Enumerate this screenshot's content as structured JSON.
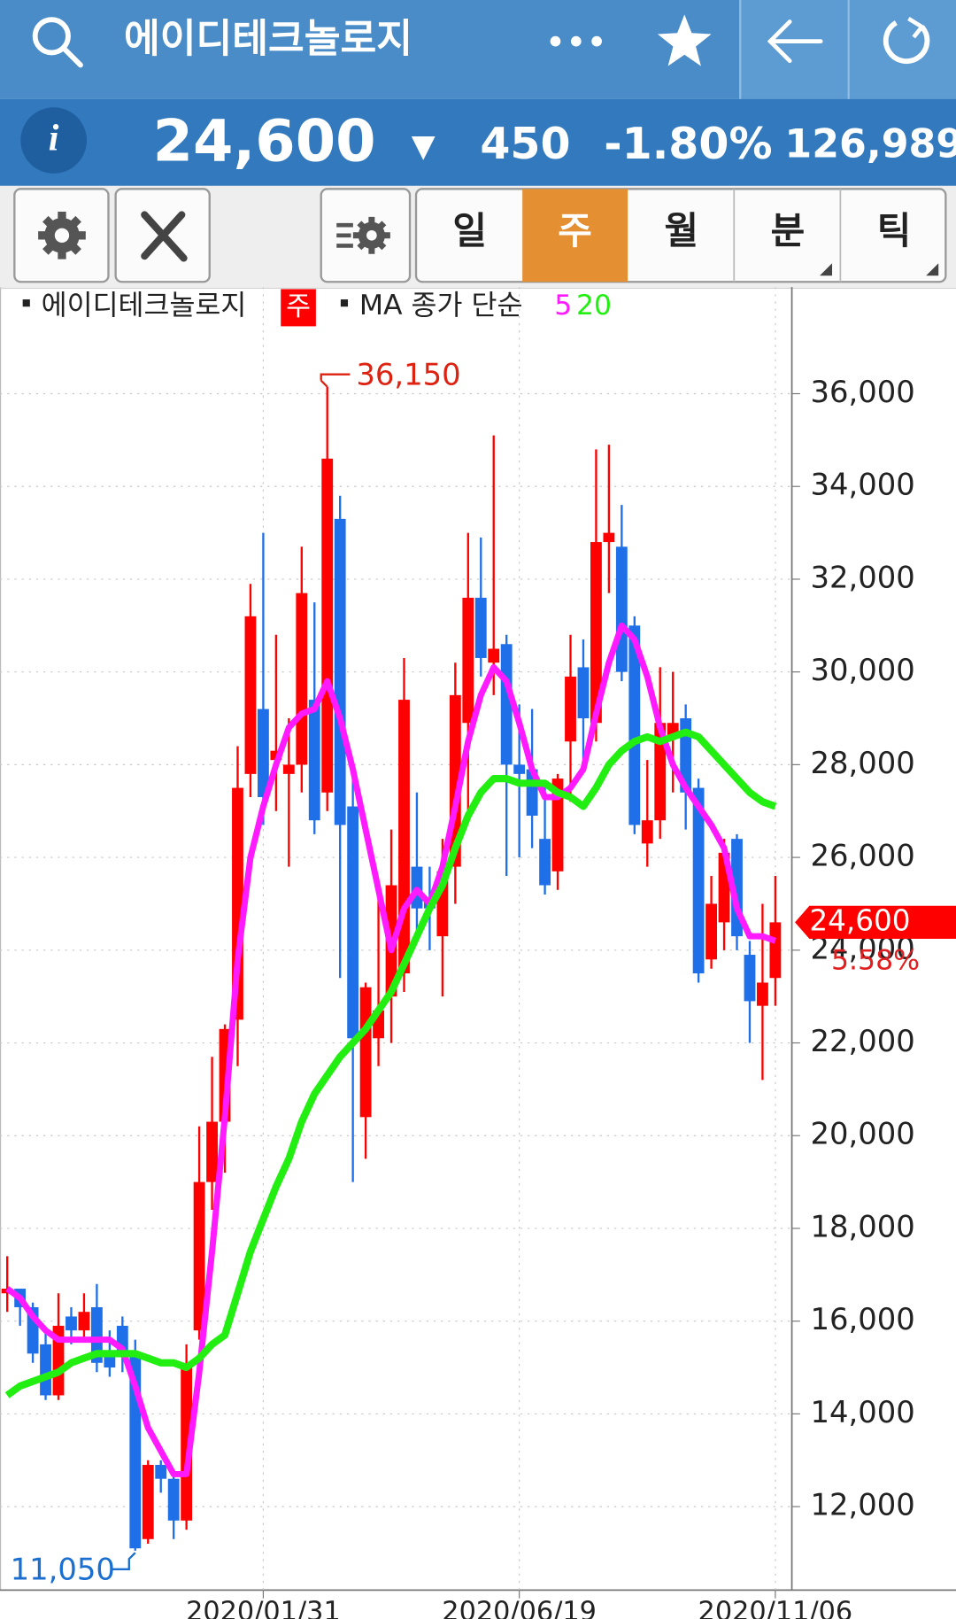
{
  "header": {
    "title": "에이디테크놀로지"
  },
  "quote": {
    "price": "24,600",
    "direction": "▼",
    "change": "450",
    "change_rate": "-1.80%",
    "volume": "126,989"
  },
  "tabs": [
    "일",
    "주",
    "월",
    "분",
    "틱"
  ],
  "chart_data": {
    "type": "candlestick",
    "legend": {
      "name": "에이디테크놀로지",
      "period": "주",
      "ma_label": "MA 종가 단순"
    },
    "categories": [
      null,
      null,
      null,
      null,
      null,
      null,
      null,
      null,
      null,
      null,
      null,
      null,
      null,
      null,
      null,
      null,
      null,
      null,
      null,
      null,
      "2020/01/31",
      null,
      null,
      null,
      null,
      null,
      null,
      null,
      null,
      null,
      null,
      null,
      null,
      null,
      null,
      null,
      null,
      null,
      null,
      null,
      "2020/06/19",
      null,
      null,
      null,
      null,
      null,
      null,
      null,
      null,
      null,
      null,
      null,
      null,
      null,
      null,
      null,
      null,
      null,
      null,
      null,
      "2020/11/06"
    ],
    "open": [
      16600,
      16700,
      16300,
      15500,
      14400,
      16100,
      15800,
      16300,
      15300,
      15900,
      15300,
      11300,
      12900,
      12600,
      11700,
      15800,
      19000,
      20300,
      22500,
      27800,
      29200,
      28100,
      27800,
      28000,
      29400,
      27400,
      33300,
      27100,
      20400,
      22100,
      23000,
      23500,
      25800,
      25100,
      24300,
      25800,
      28900,
      31600,
      30200,
      30600,
      28000,
      27900,
      26400,
      25700,
      28500,
      30100,
      28900,
      32800,
      32700,
      31000,
      26300,
      26800,
      28600,
      29000,
      27500,
      23800,
      24600,
      26400,
      23900,
      22800,
      23400
    ],
    "high": [
      17400,
      16700,
      16400,
      15800,
      16600,
      16300,
      16600,
      16800,
      15800,
      16100,
      15600,
      13000,
      13000,
      12800,
      15500,
      20200,
      21700,
      22400,
      28400,
      31900,
      33000,
      30800,
      29000,
      32700,
      31500,
      36150,
      33800,
      27800,
      23300,
      25300,
      26600,
      30300,
      27400,
      25800,
      26400,
      30200,
      33000,
      32900,
      35100,
      30800,
      29300,
      29200,
      27600,
      27800,
      30800,
      30700,
      34800,
      34900,
      33600,
      31200,
      28100,
      30100,
      30000,
      29300,
      27700,
      25600,
      26400,
      26500,
      24200,
      25000,
      25600
    ],
    "low": [
      16200,
      15900,
      15100,
      14300,
      14300,
      15500,
      15600,
      14900,
      14800,
      14900,
      11050,
      11200,
      12300,
      11300,
      11500,
      15600,
      18400,
      19200,
      21500,
      27300,
      26700,
      27000,
      25800,
      27400,
      26500,
      27000,
      23400,
      19000,
      19500,
      21500,
      22000,
      23100,
      24300,
      24000,
      23000,
      25000,
      27000,
      29900,
      29500,
      25600,
      26000,
      26200,
      25200,
      25300,
      27200,
      28100,
      28500,
      31700,
      29800,
      26500,
      25800,
      26400,
      27400,
      26600,
      23300,
      23600,
      24000,
      24000,
      22000,
      21200,
      22800
    ],
    "close": [
      16700,
      16300,
      15300,
      14400,
      15900,
      15800,
      16200,
      15100,
      15000,
      15300,
      11100,
      12900,
      12600,
      11700,
      15000,
      19000,
      20300,
      22300,
      27500,
      31200,
      27300,
      28300,
      28000,
      31700,
      26800,
      34600,
      26700,
      22100,
      23200,
      22700,
      25400,
      29400,
      24900,
      24900,
      25700,
      29500,
      31600,
      30300,
      30500,
      28000,
      27800,
      26900,
      25400,
      27700,
      29900,
      29000,
      32800,
      33000,
      30000,
      26700,
      26800,
      28900,
      28900,
      27400,
      23500,
      25000,
      26100,
      24300,
      22900,
      23300,
      24600
    ],
    "up_color": "#ff0000",
    "down_color": "#1f6fe8",
    "series": [
      {
        "name": "5",
        "color": "#ff1aff",
        "values": [
          16700,
          16500,
          16100,
          15800,
          15600,
          15600,
          15600,
          15600,
          15600,
          15400,
          14600,
          13700,
          13200,
          12700,
          12700,
          14900,
          17500,
          20400,
          23800,
          26000,
          27100,
          28000,
          28800,
          29100,
          29200,
          29800,
          29000,
          27900,
          26600,
          25300,
          24000,
          24900,
          25300,
          25000,
          25800,
          27100,
          28500,
          29500,
          30100,
          29800,
          28900,
          27900,
          27300,
          27300,
          27500,
          27900,
          29100,
          30200,
          31000,
          30700,
          29900,
          28800,
          28000,
          27500,
          27100,
          26700,
          26200,
          24900,
          24300,
          24300,
          24200
        ]
      },
      {
        "name": "20",
        "color": "#22ee11",
        "values": [
          14400,
          14600,
          14700,
          14800,
          14900,
          15100,
          15200,
          15300,
          15300,
          15300,
          15300,
          15200,
          15100,
          15100,
          15000,
          15200,
          15500,
          15700,
          16600,
          17500,
          18200,
          18900,
          19500,
          20300,
          20900,
          21300,
          21700,
          22000,
          22300,
          22700,
          23100,
          23700,
          24300,
          24900,
          25400,
          26200,
          26900,
          27400,
          27700,
          27700,
          27600,
          27600,
          27600,
          27400,
          27300,
          27100,
          27500,
          28000,
          28300,
          28500,
          28600,
          28500,
          28600,
          28700,
          28600,
          28300,
          28000,
          27700,
          27400,
          27200,
          27100
        ]
      }
    ],
    "ylim": [
      10200,
      38300
    ],
    "yticks": [
      {
        "value": 12000,
        "label": "12,000"
      },
      {
        "value": 14000,
        "label": "14,000"
      },
      {
        "value": 16000,
        "label": "16,000"
      },
      {
        "value": 18000,
        "label": "18,000"
      },
      {
        "value": 20000,
        "label": "20,000"
      },
      {
        "value": 22000,
        "label": "22,000"
      },
      {
        "value": 24000,
        "label": "24,000"
      },
      {
        "value": 26000,
        "label": "26,000"
      },
      {
        "value": 28000,
        "label": "28,000"
      },
      {
        "value": 30000,
        "label": "30,000"
      },
      {
        "value": 32000,
        "label": "32,000"
      },
      {
        "value": 34000,
        "label": "34,000"
      },
      {
        "value": 36000,
        "label": "36,000"
      }
    ],
    "grid": true,
    "high_marker": {
      "value": 36150,
      "label": "36,150"
    },
    "low_marker": {
      "value": 11050,
      "label": "11,050"
    },
    "last_price": {
      "value": 24600,
      "label": "24,600"
    },
    "last_change": "5.58%"
  }
}
